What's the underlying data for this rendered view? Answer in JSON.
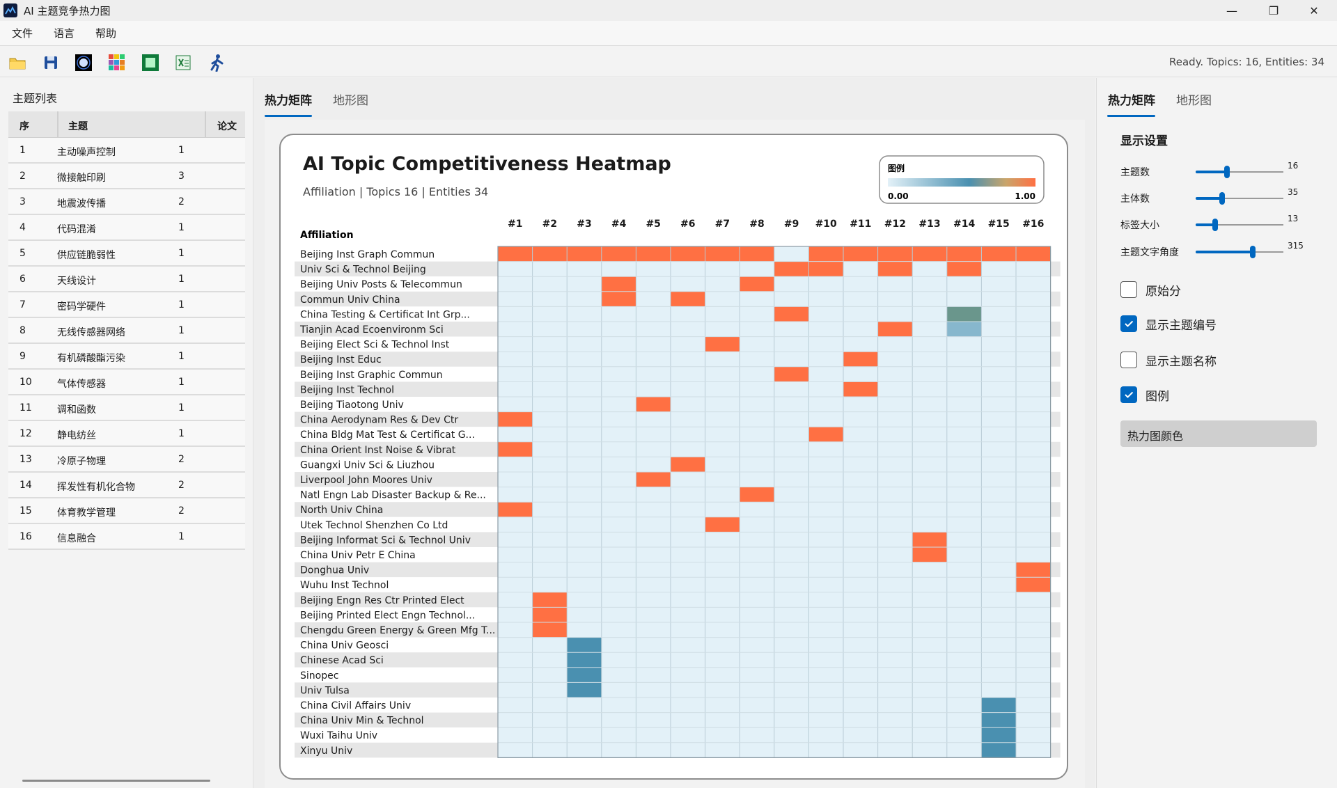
{
  "window": {
    "title": "AI 主题竞争热力图",
    "minimize": "—",
    "maximize": "❐",
    "close": "✕"
  },
  "menu": [
    "文件",
    "语言",
    "帮助"
  ],
  "toolbar": {
    "tools": [
      "open-folder-icon",
      "save-icon",
      "dark-theme-icon",
      "palette-icon",
      "green-theme-icon",
      "export-excel-icon",
      "run-icon"
    ],
    "status": "Ready. Topics: 16, Entities: 34"
  },
  "topic_panel": {
    "title": "主题列表",
    "columns": [
      "序",
      "主题",
      "论文"
    ],
    "rows": [
      [
        "1",
        "主动噪声控制",
        "1"
      ],
      [
        "2",
        "微接触印刷",
        "3"
      ],
      [
        "3",
        "地震波传播",
        "2"
      ],
      [
        "4",
        "代码混淆",
        "1"
      ],
      [
        "5",
        "供应链脆弱性",
        "1"
      ],
      [
        "6",
        "天线设计",
        "1"
      ],
      [
        "7",
        "密码学硬件",
        "1"
      ],
      [
        "8",
        "无线传感器网络",
        "1"
      ],
      [
        "9",
        "有机磷酸酯污染",
        "1"
      ],
      [
        "10",
        "气体传感器",
        "1"
      ],
      [
        "11",
        "调和函数",
        "1"
      ],
      [
        "12",
        "静电纺丝",
        "1"
      ],
      [
        "13",
        "冷原子物理",
        "2"
      ],
      [
        "14",
        "挥发性有机化合物",
        "2"
      ],
      [
        "15",
        "体育教学管理",
        "2"
      ],
      [
        "16",
        "信息融合",
        "1"
      ]
    ]
  },
  "center_tabs": [
    "热力矩阵",
    "地形图"
  ],
  "right_tabs": [
    "热力矩阵",
    "地形图"
  ],
  "chart_data": {
    "type": "heatmap",
    "title": "AI Topic Competitiveness Heatmap",
    "subtitle": "Affiliation | Topics 16 | Entities 34",
    "row_axis_label": "Affiliation",
    "columns": [
      "#1",
      "#2",
      "#3",
      "#4",
      "#5",
      "#6",
      "#7",
      "#8",
      "#9",
      "#10",
      "#11",
      "#12",
      "#13",
      "#14",
      "#15",
      "#16"
    ],
    "rows": [
      "Beijing Inst Graph Commun",
      "Univ Sci & Technol Beijing",
      "Beijing Univ Posts & Telecommun",
      "Commun Univ China",
      "China Testing & Certificat Int Grp...",
      "Tianjin Acad Ecoenvironm Sci",
      "Beijing Elect Sci & Technol Inst",
      "Beijing Inst Educ",
      "Beijing Inst Graphic Commun",
      "Beijing Inst Technol",
      "Beijing Tiaotong Univ",
      "China Aerodynam Res & Dev Ctr",
      "China Bldg Mat Test & Certificat G...",
      "China Orient Inst Noise & Vibrat",
      "Guangxi Univ Sci & Liuzhou",
      "Liverpool John Moores Univ",
      "Natl Engn Lab Disaster Backup & Re...",
      "North Univ China",
      "Utek Technol Shenzhen Co Ltd",
      "Beijing Informat Sci & Technol Univ",
      "China Univ Petr E China",
      "Donghua Univ",
      "Wuhu Inst Technol",
      "Beijing Engn Res Ctr Printed Elect",
      "Beijing Printed Elect Engn Technol...",
      "Chengdu Green Energy & Green Mfg T...",
      "China Univ Geosci",
      "Chinese Acad Sci",
      "Sinopec",
      "Univ Tulsa",
      "China Civil Affairs Univ",
      "China Univ Min & Technol",
      "Wuxi Taihu Univ",
      "Xinyu Univ"
    ],
    "cells": [
      [
        0,
        0,
        1.0
      ],
      [
        0,
        1,
        1.0
      ],
      [
        0,
        2,
        1.0
      ],
      [
        0,
        3,
        1.0
      ],
      [
        0,
        4,
        1.0
      ],
      [
        0,
        5,
        1.0
      ],
      [
        0,
        6,
        1.0
      ],
      [
        0,
        7,
        1.0
      ],
      [
        0,
        9,
        1.0
      ],
      [
        0,
        10,
        1.0
      ],
      [
        0,
        11,
        1.0
      ],
      [
        0,
        12,
        1.0
      ],
      [
        0,
        13,
        1.0
      ],
      [
        0,
        14,
        1.0
      ],
      [
        0,
        15,
        1.0
      ],
      [
        1,
        8,
        1.0
      ],
      [
        1,
        9,
        1.0
      ],
      [
        1,
        11,
        1.0
      ],
      [
        1,
        13,
        1.0
      ],
      [
        2,
        3,
        1.0
      ],
      [
        2,
        7,
        1.0
      ],
      [
        3,
        3,
        1.0
      ],
      [
        3,
        5,
        1.0
      ],
      [
        4,
        8,
        1.0
      ],
      [
        4,
        13,
        0.5
      ],
      [
        5,
        11,
        1.0
      ],
      [
        5,
        13,
        0.33
      ],
      [
        6,
        6,
        1.0
      ],
      [
        7,
        10,
        1.0
      ],
      [
        8,
        8,
        1.0
      ],
      [
        9,
        10,
        1.0
      ],
      [
        10,
        4,
        1.0
      ],
      [
        11,
        0,
        1.0
      ],
      [
        12,
        9,
        1.0
      ],
      [
        13,
        0,
        1.0
      ],
      [
        14,
        5,
        1.0
      ],
      [
        15,
        4,
        1.0
      ],
      [
        16,
        7,
        1.0
      ],
      [
        17,
        0,
        1.0
      ],
      [
        18,
        6,
        1.0
      ],
      [
        19,
        12,
        1.0
      ],
      [
        20,
        12,
        1.0
      ],
      [
        21,
        15,
        1.0
      ],
      [
        22,
        15,
        1.0
      ],
      [
        23,
        1,
        1.0
      ],
      [
        24,
        1,
        1.0
      ],
      [
        25,
        1,
        1.0
      ],
      [
        26,
        2,
        0.6
      ],
      [
        27,
        2,
        0.6
      ],
      [
        28,
        2,
        0.6
      ],
      [
        29,
        2,
        0.6
      ],
      [
        30,
        14,
        0.6
      ],
      [
        31,
        14,
        0.6
      ],
      [
        32,
        14,
        0.6
      ],
      [
        33,
        14,
        0.6
      ]
    ],
    "range": [
      0,
      1
    ],
    "legend": {
      "title": "图例",
      "min_label": "0.00",
      "max_label": "1.00",
      "placement": "top-right"
    },
    "colors": {
      "low": "#e3f1f8",
      "mid": "#4a90b0",
      "high": "#ff7043"
    }
  },
  "settings": {
    "title": "显示设置",
    "sliders": [
      {
        "label": "主题数",
        "value": "16",
        "fraction": 0.36
      },
      {
        "label": "主体数",
        "value": "35",
        "fraction": 0.3
      },
      {
        "label": "标签大小",
        "value": "13",
        "fraction": 0.22
      },
      {
        "label": "主题文字角度",
        "value": "315",
        "fraction": 0.65
      }
    ],
    "checkboxes": [
      {
        "label": "原始分",
        "checked": false
      },
      {
        "label": "显示主题编号",
        "checked": true
      },
      {
        "label": "显示主题名称",
        "checked": false
      },
      {
        "label": "图例",
        "checked": true
      }
    ],
    "color_button": "热力图颜色"
  }
}
